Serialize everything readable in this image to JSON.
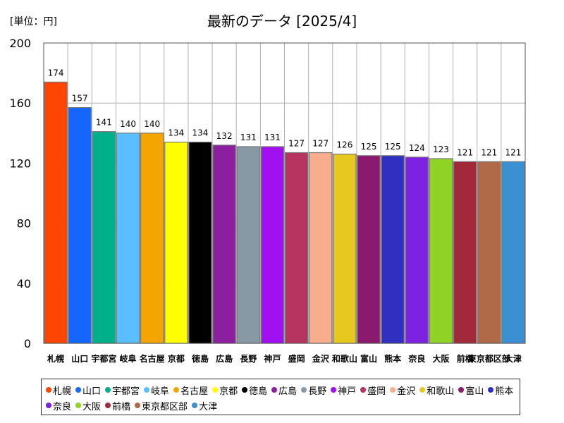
{
  "chart_data": {
    "type": "bar",
    "title": "最新のデータ [2025/4]",
    "unit_label": "[単位：円]",
    "ylim": [
      0,
      200
    ],
    "yticks": [
      0,
      40,
      80,
      120,
      160,
      200
    ],
    "categories": [
      "札幌",
      "山口",
      "宇都宮",
      "岐阜",
      "名古屋",
      "京都",
      "徳島",
      "広島",
      "長野",
      "神戸",
      "盛岡",
      "金沢",
      "和歌山",
      "富山",
      "熊本",
      "奈良",
      "大阪",
      "前橋",
      "東京都区部",
      "大津"
    ],
    "values": [
      174,
      157,
      141,
      140,
      140,
      134,
      134,
      132,
      131,
      131,
      127,
      127,
      126,
      125,
      125,
      124,
      123,
      121,
      121,
      121
    ],
    "colors": [
      "#ff4500",
      "#1565ff",
      "#00b08a",
      "#5bbfff",
      "#f5a500",
      "#ffff00",
      "#000000",
      "#8b1fa0",
      "#8899a6",
      "#a010f0",
      "#b53460",
      "#f8ae8c",
      "#e6c820",
      "#8b1a6e",
      "#3030c0",
      "#7c22e0",
      "#8ed326",
      "#a02a3a",
      "#b06a48",
      "#3a90d0"
    ],
    "legend": [
      "札幌",
      "山口",
      "宇都宮",
      "岐阜",
      "名古屋",
      "京都",
      "徳島",
      "広島",
      "長野",
      "神戸",
      "盛岡",
      "金沢",
      "和歌山",
      "富山",
      "熊本",
      "奈良",
      "大阪",
      "前橋",
      "東京都区部",
      "大津"
    ],
    "legend_position": "bottom",
    "grid": true
  }
}
